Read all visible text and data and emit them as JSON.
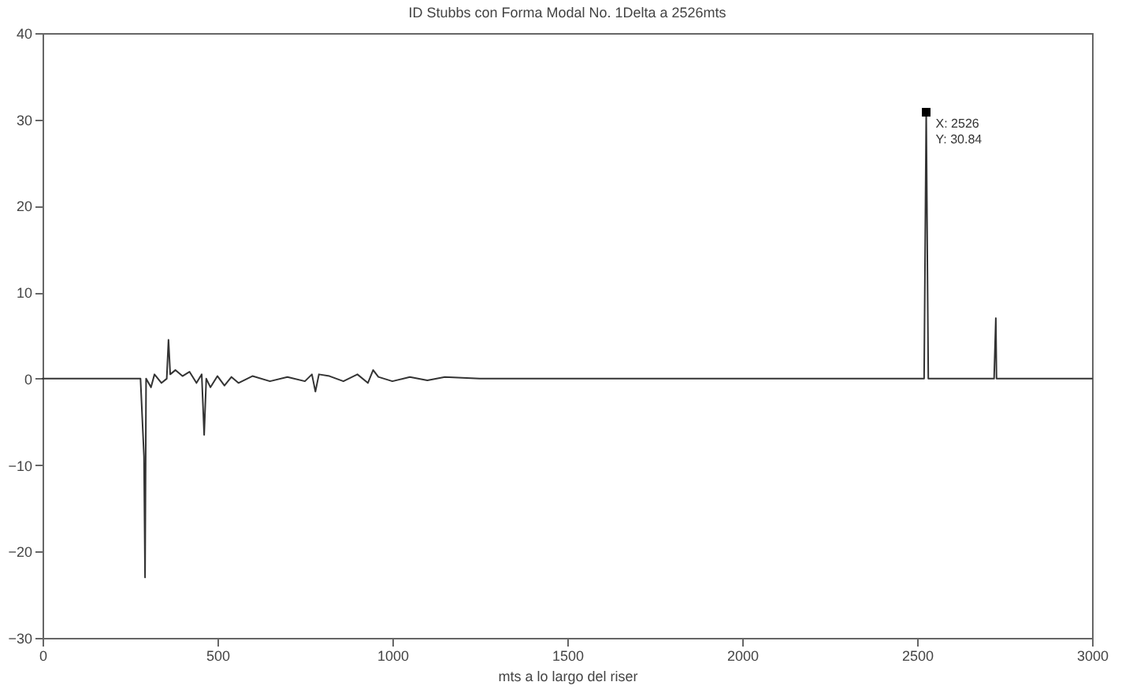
{
  "chart_data": {
    "type": "line",
    "title": "ID Stubbs con Forma Modal No. 1Delta a 2526mts",
    "xlabel": "mts a lo largo del riser",
    "x": [
      0,
      280,
      290,
      293,
      296,
      310,
      320,
      340,
      355,
      360,
      365,
      380,
      400,
      420,
      440,
      455,
      462,
      468,
      480,
      500,
      520,
      540,
      560,
      600,
      650,
      700,
      750,
      770,
      780,
      790,
      820,
      860,
      900,
      930,
      945,
      960,
      1000,
      1050,
      1100,
      1150,
      1250,
      2520,
      2526,
      2532,
      2720,
      2725,
      2727,
      3000
    ],
    "series": [
      {
        "color": "#333333",
        "values": [
          0,
          0,
          -9,
          -23,
          0,
          -1,
          0.5,
          -0.5,
          0,
          4.5,
          0.5,
          1,
          0.3,
          0.8,
          -0.5,
          0.5,
          -6.5,
          0,
          -1,
          0.3,
          -0.8,
          0.2,
          -0.5,
          0.3,
          -0.3,
          0.2,
          -0.3,
          0.5,
          -1.5,
          0.5,
          0.3,
          -0.3,
          0.5,
          -0.5,
          1,
          0.2,
          -0.3,
          0.2,
          -0.2,
          0.2,
          0,
          0,
          30.84,
          0,
          0,
          7,
          0,
          0
        ]
      }
    ],
    "xlim": [
      0,
      3000
    ],
    "xticks": [
      0,
      500,
      1000,
      1500,
      2000,
      2500,
      3000
    ],
    "ylim": [
      -30,
      40
    ],
    "yticks": [
      -30,
      -20,
      -10,
      0,
      10,
      20,
      30,
      40
    ],
    "annotations": [
      {
        "text": "X: 2526\nY: 30.84",
        "x": 2526,
        "y": 30.84
      }
    ],
    "grid": false
  }
}
